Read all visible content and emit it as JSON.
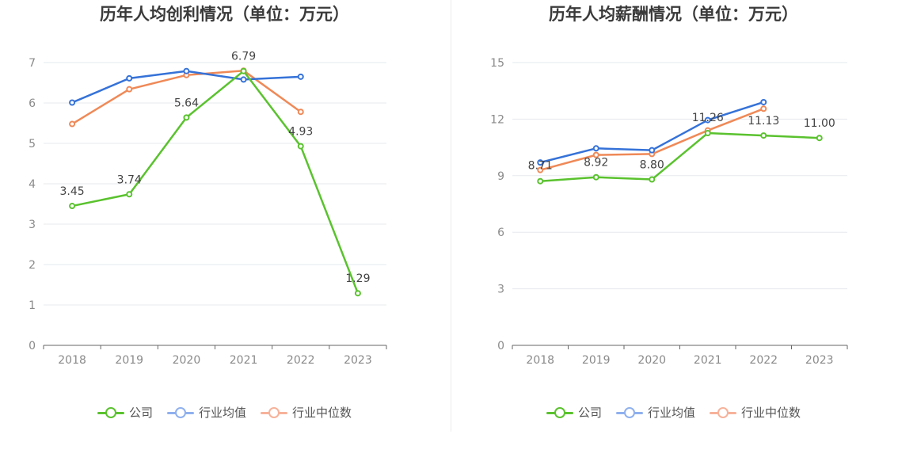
{
  "colors": {
    "company": "#5ac22e",
    "industry_avg": "#3572d8",
    "industry_median": "#ef8957",
    "legend_avg": "#8fb0ee",
    "legend_median": "#f7b29a",
    "grid": "#e6e8ee",
    "axis": "#666666",
    "tick_text": "#8a8a8a",
    "label_text": "#444444"
  },
  "legend": {
    "company": "公司",
    "industry_avg": "行业均值",
    "industry_median": "行业中位数"
  },
  "chart_data": [
    {
      "type": "line",
      "title": "历年人均创利情况（单位：万元）",
      "x": [
        "2018",
        "2019",
        "2020",
        "2021",
        "2022",
        "2023"
      ],
      "ylim": [
        0,
        7
      ],
      "yticks": [
        0,
        1,
        2,
        3,
        4,
        5,
        6,
        7
      ],
      "grid": true,
      "legend_position": "bottom-center",
      "series": [
        {
          "name": "公司",
          "values": [
            3.45,
            3.74,
            5.64,
            6.79,
            4.93,
            1.29
          ],
          "labels": [
            "3.45",
            "3.74",
            "5.64",
            "6.79",
            "4.93",
            "1.29"
          ]
        },
        {
          "name": "行业均值",
          "values": [
            6.01,
            6.61,
            6.79,
            6.58,
            6.65,
            null
          ]
        },
        {
          "name": "行业中位数",
          "values": [
            5.48,
            6.34,
            6.69,
            6.8,
            5.78,
            null
          ]
        }
      ]
    },
    {
      "type": "line",
      "title": "历年人均薪酬情况（单位：万元）",
      "x": [
        "2018",
        "2019",
        "2020",
        "2021",
        "2022",
        "2023"
      ],
      "ylim": [
        0,
        15
      ],
      "yticks": [
        0,
        3,
        6,
        9,
        12,
        15
      ],
      "grid": true,
      "legend_position": "bottom-center",
      "series": [
        {
          "name": "公司",
          "values": [
            8.71,
            8.92,
            8.8,
            11.26,
            11.13,
            11.0
          ],
          "labels": [
            "8.71",
            "8.92",
            "8.80",
            "11.26",
            "11.13",
            "11.00"
          ]
        },
        {
          "name": "行业均值",
          "values": [
            9.7,
            10.45,
            10.35,
            11.95,
            12.9,
            null
          ]
        },
        {
          "name": "行业中位数",
          "values": [
            9.3,
            10.1,
            10.15,
            11.4,
            12.55,
            null
          ]
        }
      ]
    }
  ]
}
